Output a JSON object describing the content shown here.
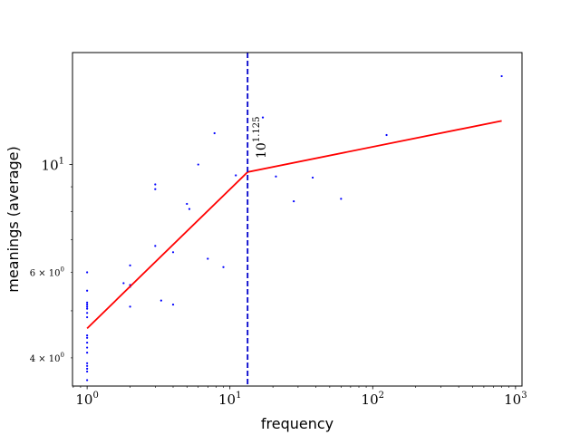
{
  "chart_data": {
    "type": "scatter",
    "xlabel": "frequency",
    "ylabel": "meanings (average)",
    "xscale": "log",
    "yscale": "log",
    "xlim": [
      0.79,
      1110
    ],
    "ylim": [
      3.5,
      17.0
    ],
    "grid": false,
    "x_ticks": [
      {
        "value": 1,
        "base": "10",
        "exp": "0"
      },
      {
        "value": 10,
        "base": "10",
        "exp": "1"
      },
      {
        "value": 100,
        "base": "10",
        "exp": "2"
      },
      {
        "value": 1000,
        "base": "10",
        "exp": "3"
      }
    ],
    "y_ticks": [
      {
        "value": 4,
        "mant": "4 × 10",
        "exp": "0"
      },
      {
        "value": 6,
        "mant": "6 × 10",
        "exp": "0"
      },
      {
        "value": 10,
        "mant": "10",
        "exp": "1"
      }
    ],
    "points": {
      "color": "#0000ff",
      "x": [
        1,
        1,
        1,
        1,
        1,
        1,
        1,
        1,
        1,
        1,
        1,
        1,
        1,
        1,
        1,
        1,
        1,
        1,
        1.8,
        2,
        2,
        2,
        2,
        3,
        3,
        3,
        3.3,
        4,
        4,
        5,
        5.2,
        6,
        7,
        7.8,
        9,
        11,
        17,
        21,
        28,
        38,
        60,
        125,
        800
      ],
      "y": [
        6.0,
        5.5,
        5.2,
        5.15,
        5.1,
        5.05,
        4.95,
        4.85,
        4.45,
        4.4,
        4.3,
        4.2,
        4.1,
        3.9,
        3.85,
        3.8,
        3.75,
        3.6,
        5.7,
        6.2,
        5.65,
        5.6,
        5.1,
        9.1,
        8.9,
        6.8,
        5.25,
        6.6,
        5.15,
        8.3,
        8.1,
        10.0,
        6.4,
        11.6,
        6.15,
        9.5,
        12.5,
        9.45,
        8.4,
        9.4,
        8.5,
        11.5,
        15.2
      ]
    },
    "fit_line": {
      "color": "#ff0000",
      "points": [
        {
          "x": 1,
          "y": 4.6
        },
        {
          "x": 13.3,
          "y": 9.65
        },
        {
          "x": 800,
          "y": 12.3
        }
      ]
    },
    "breakpoint": {
      "x": 13.3,
      "color": "#0000cc",
      "style": "dashed",
      "label_base": "10",
      "label_exp": "1.125"
    }
  }
}
